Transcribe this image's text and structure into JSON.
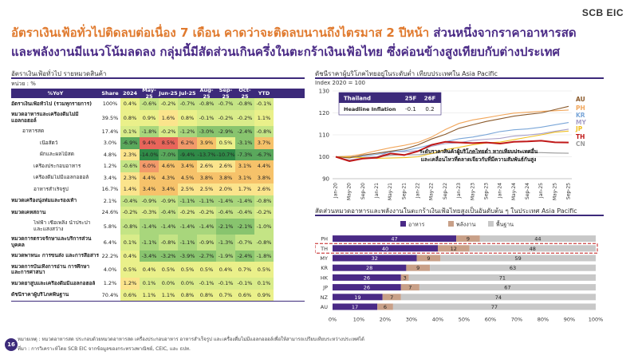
{
  "logo": "SCB EIC",
  "headline": {
    "part1": "อัตราเงินเฟ้อทั่วไปติดลบต่อเนื่อง 7 เดือน คาดว่าจะติดลบนานถึงไตรมาส 2 ปีหน้า ",
    "part2": "ส่วนหนึ่งจากราคาอาหารสด",
    "part3": "และพลังงานมีแนวโน้มลดลง กลุ่มนี้มีสัดส่วนเกินครึ่งในตะกร้าเงินเฟ้อไทย ซึ่งค่อนข้างสูงเทียบกับต่างประเทศ"
  },
  "left": {
    "title": "อัตราเงินเฟ้อทั่วไป รายหมวดสินค้า",
    "unit": "หน่วย : %",
    "columns": [
      "%YoY",
      "Share",
      "2024",
      "May-25",
      "Jun-25",
      "Jul-25",
      "Aug-25",
      "Sep-25",
      "Oct-25",
      "YTD"
    ],
    "rows": [
      {
        "label": "อัตราเงินเฟ้อทั่วไป (รวมทุกรายการ)",
        "style": "bold",
        "cells": [
          "100%",
          "0.4%",
          "-0.6%",
          "-0.2%",
          "-0.7%",
          "-0.8%",
          "-0.7%",
          "-0.8%",
          "-0.1%"
        ]
      },
      {
        "label": "หมวดอาหารและเครื่องดื่มไม่มีแอลกอฮอล์",
        "style": "bold tall",
        "cells": [
          "39.5%",
          "0.8%",
          "0.9%",
          "1.6%",
          "0.8%",
          "-0.1%",
          "-0.2%",
          "-0.2%",
          "1.1%"
        ]
      },
      {
        "label": "อาหารสด",
        "style": "ind1",
        "cells": [
          "17.4%",
          "0.1%",
          "-1.8%",
          "-0.2%",
          "-1.2%",
          "-3.0%",
          "-2.9%",
          "-2.4%",
          "-0.8%"
        ]
      },
      {
        "label": "เนื้อสัตว์",
        "style": "ind3",
        "cells": [
          "3.0%",
          "-6.9%",
          "9.4%",
          "8.5%",
          "6.2%",
          "3.9%",
          "0.5%",
          "-3.1%",
          "3.7%"
        ]
      },
      {
        "label": "ผักและผลไม้สด",
        "style": "ind3",
        "cells": [
          "4.8%",
          "2.3%",
          "-14.0%",
          "-7.0%",
          "-9.4%",
          "-13.7%",
          "-10.7%",
          "-7.3%",
          "-6.7%"
        ]
      },
      {
        "label": "เครื่องประกอบอาหาร",
        "style": "ind2",
        "cells": [
          "1.2%",
          "-0.6%",
          "6.0%",
          "4.6%",
          "3.4%",
          "2.6%",
          "2.6%",
          "3.1%",
          "4.4%"
        ]
      },
      {
        "label": "เครื่องดื่มไม่มีแอลกอฮอล์",
        "style": "ind2",
        "cells": [
          "3.4%",
          "2.3%",
          "4.4%",
          "4.3%",
          "4.5%",
          "3.8%",
          "3.8%",
          "3.1%",
          "3.8%"
        ]
      },
      {
        "label": "อาหารสำเร็จรูป",
        "style": "ind2",
        "cells": [
          "16.7%",
          "1.4%",
          "3.4%",
          "3.4%",
          "2.5%",
          "2.5%",
          "2.0%",
          "1.7%",
          "2.6%"
        ]
      },
      {
        "label": "หมวดเครื่องนุ่งห่มและรองเท้า",
        "style": "bold",
        "cells": [
          "2.1%",
          "-0.4%",
          "-0.9%",
          "-0.9%",
          "-1.1%",
          "-1.1%",
          "-1.4%",
          "-1.4%",
          "-0.8%"
        ]
      },
      {
        "label": "หมวดเคหสถาน",
        "style": "bold",
        "cells": [
          "24.6%",
          "-0.2%",
          "-0.3%",
          "-0.4%",
          "-0.2%",
          "-0.2%",
          "-0.4%",
          "-0.4%",
          "-0.2%"
        ]
      },
      {
        "label": "ไฟฟ้า เชื้อเพลิง น้ำประปาและแสงสว่าง",
        "style": "ind2 tall",
        "cells": [
          "5.8%",
          "-0.8%",
          "-1.4%",
          "-1.4%",
          "-1.4%",
          "-1.4%",
          "-2.1%",
          "-2.1%",
          "-1.0%"
        ]
      },
      {
        "label": "หมวดการตรวจรักษาและบริการส่วนบุคคล",
        "style": "bold tall",
        "cells": [
          "6.4%",
          "0.1%",
          "-1.1%",
          "-0.8%",
          "-1.1%",
          "-0.9%",
          "-1.3%",
          "-0.7%",
          "-0.8%"
        ]
      },
      {
        "label": "หมวดพาหนะ การขนส่ง และการสื่อสาร",
        "style": "bold",
        "cells": [
          "22.2%",
          "0.4%",
          "-3.4%",
          "-3.2%",
          "-3.9%",
          "-2.7%",
          "-1.9%",
          "-2.4%",
          "-1.8%"
        ]
      },
      {
        "label": "หมวดการบันเทิงการอ่าน การศึกษา และการศาสนา",
        "style": "bold tall",
        "cells": [
          "4.0%",
          "0.5%",
          "0.4%",
          "0.5%",
          "0.5%",
          "0.5%",
          "0.4%",
          "0.7%",
          "0.5%"
        ]
      },
      {
        "label": "หมวดยาสูบและเครื่องดื่มมีแอลกอฮอล์",
        "style": "bold",
        "cells": [
          "1.2%",
          "1.2%",
          "0.1%",
          "0.0%",
          "0.0%",
          "-0.1%",
          "-0.1%",
          "-0.1%",
          "0.1%"
        ]
      },
      {
        "label": "ดัชนีราคาผู้บริโภคพื้นฐาน",
        "style": "bold",
        "cells": [
          "70.4%",
          "0.6%",
          "1.1%",
          "1.1%",
          "0.8%",
          "0.8%",
          "0.7%",
          "0.6%",
          "0.9%"
        ]
      }
    ]
  },
  "right_top": {
    "title": "ดัชนีราคาผู้บริโภคไทยอยู่ในระดับต่ำ เทียบประเทศใน Asia Pacific",
    "unit": "Index 2020 = 100",
    "inset": {
      "h1": "Thailand",
      "h2": "25F",
      "h3": "26F",
      "label": "Headline Inflation",
      "v1": "-0.1",
      "v2": "0.2"
    },
    "annotation1": "ระดับราคาสินค้าผู้บริโภคไทยต่ำ หากเทียบประเทศอื่น",
    "annotation2": "และเคลื่อนไหวที่ตลาดเจียวกับที่มีความสัมพันธ์กันสูง"
  },
  "right_bottom": {
    "title": "สัดส่วนหมวดอาหารและพลังงานในตะกร้าเงินเฟ้อไทยสูงเป็นอันดับต้น ๆ ในประเทศ Asia Pacific",
    "legend": [
      "อาหาร",
      "พลังงาน",
      "พื้นฐาน"
    ]
  },
  "chart_data": [
    {
      "type": "line",
      "title": "ดัชนีราคาผู้บริโภคไทยอยู่ในระดับต่ำ เทียบประเทศใน Asia Pacific",
      "ylabel": "Index 2020 = 100",
      "ylim": [
        90,
        130
      ],
      "yticks": [
        90,
        100,
        110,
        120,
        130
      ],
      "x": [
        "Jan-20",
        "May-20",
        "Sep-20",
        "Jan-21",
        "May-21",
        "Sep-21",
        "Jan-22",
        "May-22",
        "Sep-22",
        "Jan-23",
        "May-23",
        "Sep-23",
        "Jan-24",
        "May-24",
        "Sep-24",
        "Jan-25",
        "May-25",
        "Sep-25"
      ],
      "series": [
        {
          "name": "AU",
          "color": "#8b5a2b",
          "values": [
            100,
            99.5,
            100.8,
            101.6,
            102.5,
            103.5,
            105.4,
            108.1,
            110.2,
            113.0,
            114.6,
            116.1,
            117.3,
            118.5,
            119.3,
            120.0,
            121.5,
            123.0
          ]
        },
        {
          "name": "PH",
          "color": "#f2a65a",
          "values": [
            100,
            100.2,
            101.3,
            102.8,
            104.1,
            105.2,
            106.5,
            109.0,
            112.4,
            115.2,
            116.8,
            117.8,
            118.9,
            119.9,
            120.3,
            120.7,
            121.0,
            121.3
          ]
        },
        {
          "name": "KR",
          "color": "#7aa6d8",
          "values": [
            100,
            99.8,
            100.3,
            101.1,
            102.2,
            102.7,
            104.0,
            105.6,
            106.8,
            108.2,
            109.0,
            110.1,
            111.5,
            112.3,
            112.7,
            113.5,
            114.6,
            115.6
          ]
        },
        {
          "name": "MY",
          "color": "#a8a0c8",
          "values": [
            100,
            98.5,
            99.4,
            99.9,
            102.5,
            102.3,
            102.8,
            104.8,
            106.0,
            106.4,
            107.5,
            108.0,
            108.4,
            109.4,
            109.9,
            110.5,
            111.6,
            112.6
          ]
        },
        {
          "name": "JP",
          "color": "#f0c020",
          "values": [
            100,
            99.8,
            99.6,
            99.3,
            99.4,
            99.6,
            100.0,
            101.5,
            103.2,
            104.3,
            105.5,
            106.3,
            106.7,
            107.8,
            108.9,
            110.0,
            111.2,
            111.7
          ]
        },
        {
          "name": "TH",
          "color": "#c01818",
          "values": [
            100,
            98.0,
            99.2,
            99.6,
            101.5,
            100.8,
            102.5,
            105.4,
            106.8,
            106.5,
            106.2,
            106.5,
            106.0,
            106.8,
            107.0,
            107.3,
            106.6,
            106.5
          ]
        },
        {
          "name": "CN",
          "color": "#9a9a9a",
          "values": [
            100,
            100.3,
            99.6,
            100.0,
            100.7,
            100.9,
            100.9,
            101.4,
            102.3,
            101.9,
            101.5,
            101.7,
            101.6,
            102.0,
            101.9,
            101.9,
            101.7,
            101.6
          ]
        }
      ]
    },
    {
      "type": "bar",
      "stacked": true,
      "orientation": "horizontal",
      "title": "สัดส่วนหมวดอาหารและพลังงานในตะกร้าเงินเฟ้อไทยสูงเป็นอันดับต้น ๆ ในประเทศ Asia Pacific",
      "categories": [
        "PH",
        "TH",
        "MY",
        "KR",
        "HK",
        "JP",
        "NZ",
        "AU"
      ],
      "xlim": [
        0,
        100
      ],
      "xticks": [
        "0%",
        "10%",
        "20%",
        "30%",
        "40%",
        "50%",
        "60%",
        "70%",
        "80%",
        "90%",
        "100%"
      ],
      "series": [
        {
          "name": "อาหาร",
          "color": "#4a2a86",
          "values": [
            47,
            40,
            32,
            28,
            26,
            26,
            19,
            17
          ]
        },
        {
          "name": "พลังงาน",
          "color": "#c8a088",
          "values": [
            9,
            12,
            9,
            9,
            3,
            7,
            7,
            6
          ]
        },
        {
          "name": "พื้นฐาน",
          "color": "#c8c8c8",
          "values": [
            44,
            48,
            59,
            63,
            71,
            67,
            74,
            77
          ]
        }
      ],
      "highlight": "TH"
    }
  ],
  "footnote1": "หมายเหตุ : หมวดอาหารสด ประกอบด้วยหมวดอาหารสด เครื่องประกอบอาหาร อาหารสำเร็จรูป และเครื่องดื่มไม่มีแอลกอฮอล์เพื่อให้สามารถเปรียบเทียบระหว่างประเทศได้",
  "footnote2": "ที่มา : การวิเคราะห์โดย SCB EIC จากข้อมูลของกระทรวงพาณิชย์, CEIC, และ ธปท.",
  "page_number": "16"
}
